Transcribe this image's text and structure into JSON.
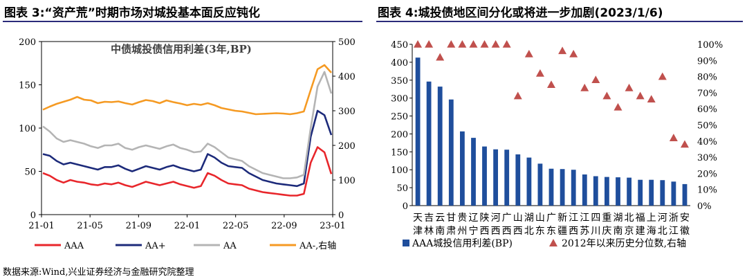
{
  "titles": {
    "left": "图表 3:“资产荒”时期市场对城投基本面反应钝化",
    "right": "图表 4:城投债地区间分化或将进一步加剧(2023/1/6)"
  },
  "footnote": "数据来源:Wind,兴业证券经济与金融研究院整理",
  "chart_data": [
    {
      "type": "line",
      "title": "中债城投债信用利差(3年,BP)",
      "x_ticks": [
        "21-01",
        "21-05",
        "21-09",
        "22-01",
        "22-05",
        "22-09",
        "23-01"
      ],
      "y_left": {
        "ticks": [
          "0",
          "50",
          "100",
          "150",
          "200"
        ],
        "ylim": [
          0,
          200
        ]
      },
      "y_right": {
        "ticks": [
          "0",
          "100",
          "200",
          "300",
          "400",
          "500"
        ],
        "ylim": [
          0,
          500
        ]
      },
      "series": [
        {
          "name": "AAA",
          "axis": "left",
          "color": "#e8262b",
          "values": [
            48,
            45,
            40,
            37,
            40,
            38,
            37,
            35,
            34,
            36,
            35,
            37,
            34,
            32,
            35,
            38,
            36,
            34,
            36,
            38,
            35,
            33,
            31,
            33,
            48,
            45,
            40,
            36,
            35,
            34,
            30,
            28,
            26,
            25,
            24,
            23,
            22,
            22,
            24,
            60,
            78,
            72,
            47
          ]
        },
        {
          "name": "AA+",
          "axis": "left",
          "color": "#1c2a7a",
          "values": [
            70,
            68,
            62,
            58,
            60,
            58,
            56,
            54,
            52,
            55,
            55,
            57,
            53,
            50,
            53,
            56,
            54,
            52,
            55,
            57,
            54,
            52,
            50,
            52,
            70,
            66,
            60,
            56,
            55,
            54,
            48,
            44,
            40,
            38,
            36,
            35,
            34,
            33,
            36,
            90,
            120,
            115,
            92
          ]
        },
        {
          "name": "AA",
          "axis": "left",
          "color": "#b4b4b4",
          "values": [
            102,
            96,
            88,
            84,
            86,
            84,
            82,
            79,
            77,
            80,
            80,
            82,
            77,
            75,
            78,
            80,
            78,
            76,
            79,
            81,
            77,
            75,
            72,
            73,
            82,
            78,
            72,
            66,
            64,
            62,
            56,
            52,
            48,
            46,
            44,
            42,
            42,
            43,
            46,
            100,
            148,
            165,
            140
          ]
        },
        {
          "name": "AA-,右轴",
          "axis": "right",
          "color": "#f59a23",
          "values": [
            303,
            312,
            320,
            326,
            332,
            340,
            332,
            330,
            322,
            326,
            325,
            327,
            322,
            318,
            325,
            331,
            328,
            322,
            330,
            325,
            321,
            316,
            320,
            317,
            322,
            316,
            308,
            304,
            300,
            298,
            294,
            290,
            291,
            292,
            293,
            292,
            290,
            293,
            298,
            360,
            420,
            432,
            410
          ]
        }
      ]
    },
    {
      "type": "bar",
      "categories": [
        "天津",
        "吉林",
        "云南",
        "甘肃",
        "贵州",
        "辽宁",
        "陕西",
        "河西",
        "广西",
        "山西",
        "湖北",
        "山东",
        "广东",
        "新疆",
        "江西",
        "江苏",
        "四川",
        "重庆",
        "湖南",
        "北京",
        "福建",
        "上海",
        "河北",
        "浙江",
        "安徽"
      ],
      "category_top": [
        "天",
        "吉",
        "云",
        "甘",
        "贵",
        "辽",
        "陕",
        "河",
        "广",
        "山",
        "湖",
        "山",
        "广",
        "新",
        "江",
        "江",
        "四",
        "重",
        "湖",
        "北",
        "福",
        "上",
        "河",
        "浙",
        "安"
      ],
      "category_bottom": [
        "津",
        "林",
        "南",
        "肃",
        "州",
        "宁",
        "西",
        "西",
        "西",
        "西",
        "北",
        "东",
        "东",
        "疆",
        "西",
        "苏",
        "川",
        "庆",
        "南",
        "京",
        "建",
        "海",
        "北",
        "江",
        "徽"
      ],
      "y_left": {
        "ticks": [
          "0",
          "50",
          "100",
          "150",
          "200",
          "250",
          "300",
          "350",
          "400",
          "450"
        ],
        "ylim": [
          0,
          450
        ]
      },
      "y_right": {
        "ticks": [
          "0%",
          "10%",
          "20%",
          "30%",
          "40%",
          "50%",
          "60%",
          "70%",
          "80%",
          "90%",
          "100%"
        ],
        "ylim": [
          0,
          100
        ]
      },
      "series": [
        {
          "name": "AAA城投信用利差(BP)",
          "type": "bar",
          "axis": "left",
          "color": "#1f4e9c",
          "values": [
            413,
            346,
            332,
            296,
            207,
            189,
            165,
            157,
            156,
            143,
            134,
            117,
            103,
            102,
            100,
            87,
            82,
            80,
            79,
            78,
            72,
            72,
            71,
            67,
            60
          ]
        },
        {
          "name": "2012年以来历史分位数,右轴",
          "type": "scatter",
          "axis": "right",
          "color": "#c0504d",
          "values": [
            100,
            100,
            92,
            100,
            100,
            100,
            100,
            100,
            100,
            68,
            94,
            82,
            75,
            96,
            94,
            73,
            78,
            68,
            61,
            73,
            68,
            66,
            80,
            42,
            38
          ]
        }
      ]
    }
  ]
}
